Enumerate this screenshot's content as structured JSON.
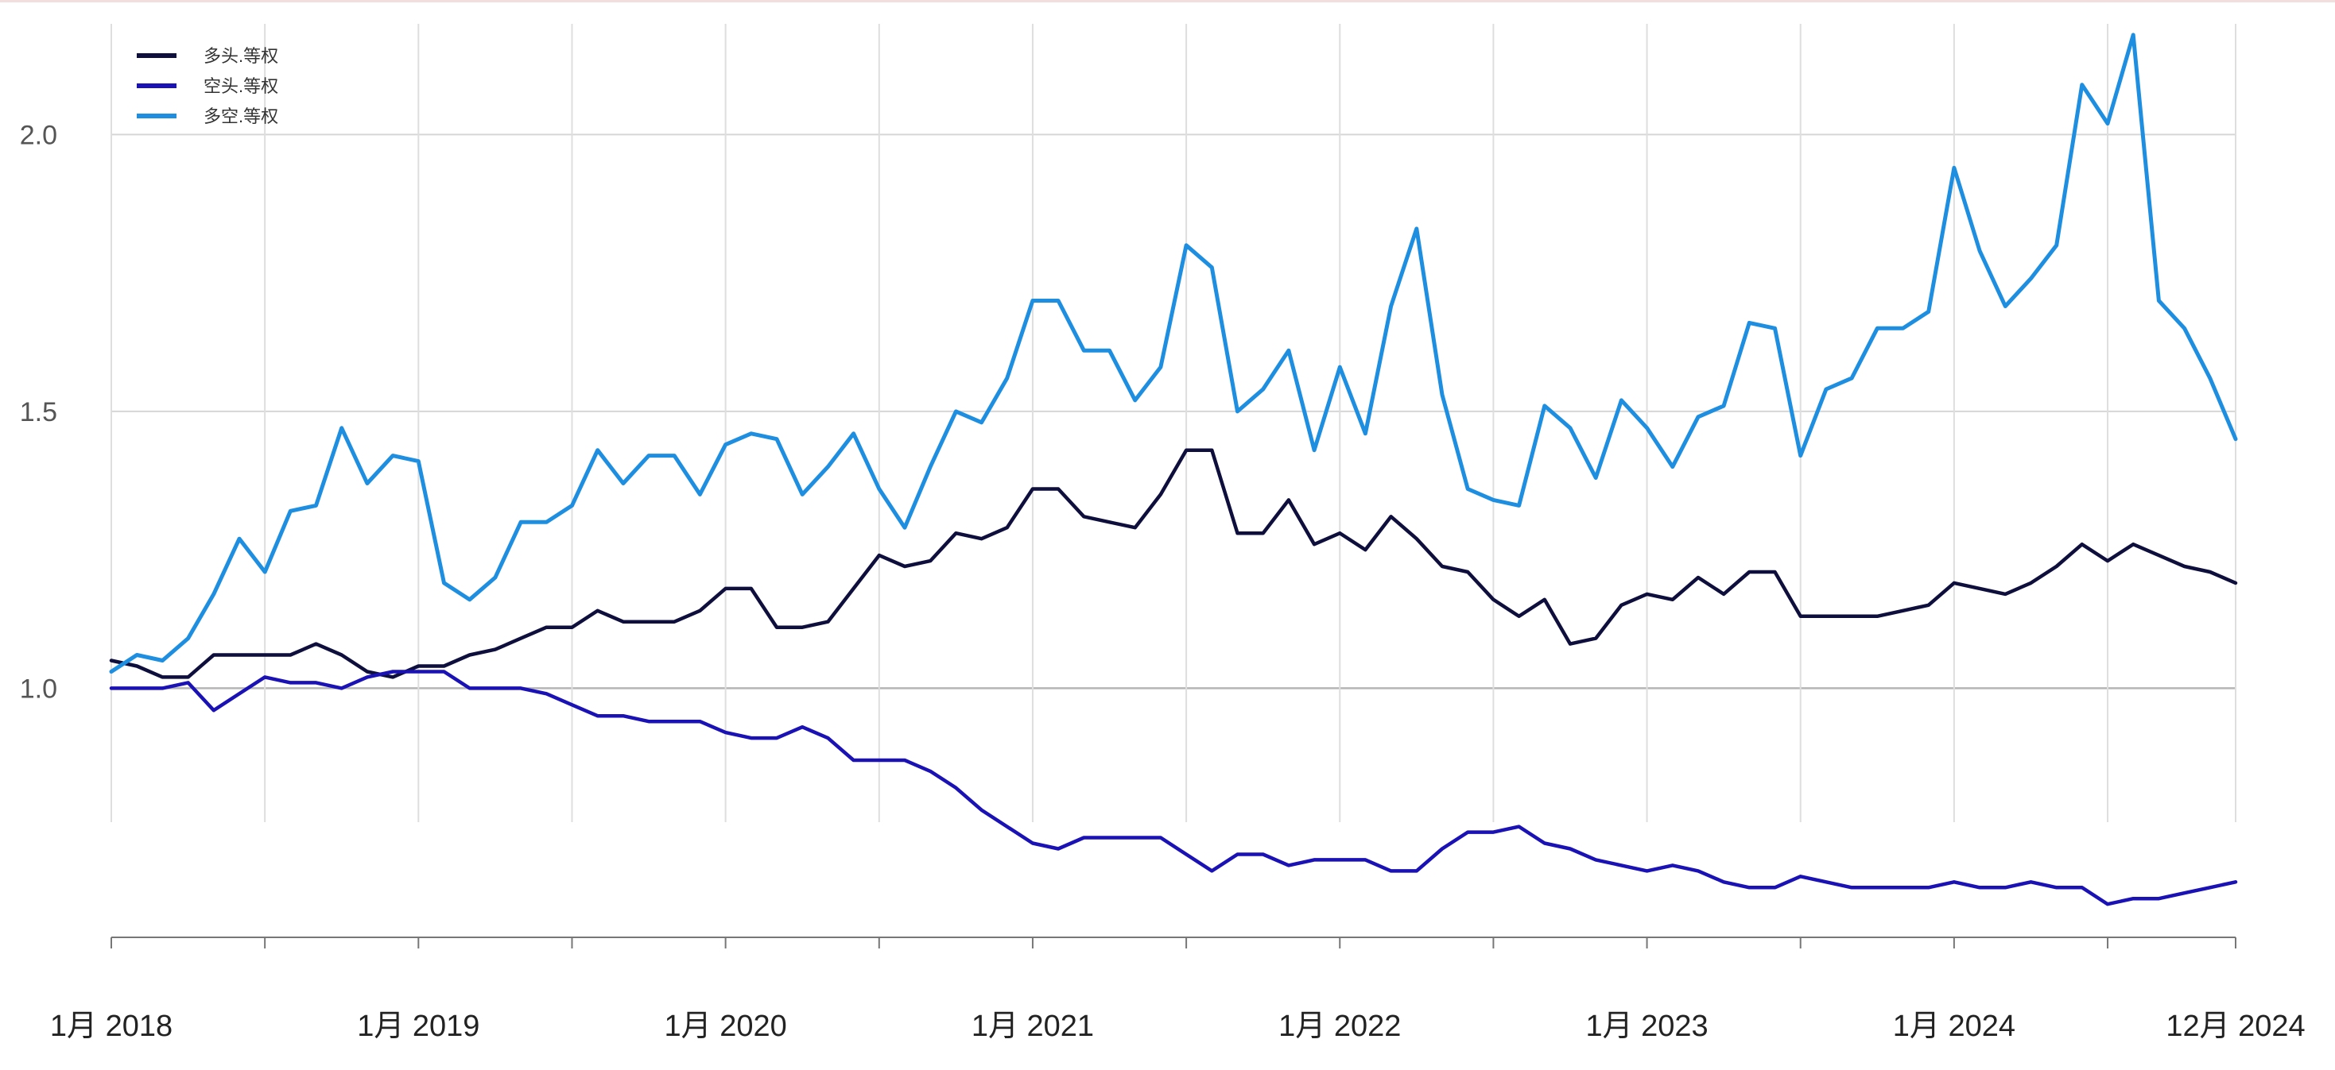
{
  "chart_data": {
    "type": "line",
    "title": "",
    "xlabel": "",
    "ylabel": "",
    "x_start": "2018-01",
    "x_end": "2024-12",
    "ylim": [
      0.55,
      2.2
    ],
    "y_ticks": [
      1.0,
      1.5,
      2.0
    ],
    "y_tick_labels": [
      "1.0",
      "1.5",
      "2.0"
    ],
    "x_tick_dates": [
      "2018-01",
      "2019-01",
      "2020-01",
      "2021-01",
      "2022-01",
      "2023-01",
      "2024-01",
      "2024-12"
    ],
    "x_tick_labels": [
      "1月 2018",
      "1月 2019",
      "1月 2020",
      "1月 2021",
      "1月 2022",
      "1月 2023",
      "1月 2024",
      "12月 2024"
    ],
    "grid": true,
    "legend": "top-left",
    "series": [
      {
        "name": "多头.等权",
        "color": "#0f0f3d",
        "values": [
          1.05,
          1.04,
          1.02,
          1.02,
          1.06,
          1.06,
          1.06,
          1.06,
          1.08,
          1.06,
          1.03,
          1.02,
          1.04,
          1.04,
          1.06,
          1.07,
          1.09,
          1.11,
          1.11,
          1.14,
          1.12,
          1.12,
          1.12,
          1.14,
          1.18,
          1.18,
          1.11,
          1.11,
          1.12,
          1.18,
          1.24,
          1.22,
          1.23,
          1.28,
          1.27,
          1.29,
          1.36,
          1.36,
          1.31,
          1.3,
          1.29,
          1.35,
          1.43,
          1.43,
          1.28,
          1.28,
          1.34,
          1.26,
          1.28,
          1.25,
          1.31,
          1.27,
          1.22,
          1.21,
          1.16,
          1.13,
          1.16,
          1.08,
          1.09,
          1.15,
          1.17,
          1.16,
          1.2,
          1.17,
          1.21,
          1.21,
          1.13,
          1.13,
          1.13,
          1.13,
          1.14,
          1.15,
          1.19,
          1.18,
          1.17,
          1.19,
          1.22,
          1.26,
          1.23,
          1.26,
          1.24,
          1.22,
          1.21,
          1.19
        ]
      },
      {
        "name": "空头.等权",
        "color": "#1a12b4",
        "values": [
          1.0,
          1.0,
          1.0,
          1.01,
          0.96,
          0.99,
          1.02,
          1.01,
          1.01,
          1.0,
          1.02,
          1.03,
          1.03,
          1.03,
          1.0,
          1.0,
          1.0,
          0.99,
          0.97,
          0.95,
          0.95,
          0.94,
          0.94,
          0.94,
          0.92,
          0.91,
          0.91,
          0.93,
          0.91,
          0.87,
          0.87,
          0.87,
          0.85,
          0.82,
          0.78,
          0.75,
          0.72,
          0.71,
          0.73,
          0.73,
          0.73,
          0.73,
          0.7,
          0.67,
          0.7,
          0.7,
          0.68,
          0.69,
          0.69,
          0.69,
          0.67,
          0.67,
          0.71,
          0.74,
          0.74,
          0.75,
          0.72,
          0.71,
          0.69,
          0.68,
          0.67,
          0.68,
          0.67,
          0.65,
          0.64,
          0.64,
          0.66,
          0.65,
          0.64,
          0.64,
          0.64,
          0.64,
          0.65,
          0.64,
          0.64,
          0.65,
          0.64,
          0.64,
          0.61,
          0.62,
          0.62,
          0.63,
          0.64,
          0.65
        ]
      },
      {
        "name": "多空.等权",
        "color": "#1e8fe0",
        "values": [
          1.03,
          1.06,
          1.05,
          1.09,
          1.17,
          1.27,
          1.21,
          1.32,
          1.33,
          1.47,
          1.37,
          1.42,
          1.41,
          1.19,
          1.16,
          1.2,
          1.3,
          1.3,
          1.33,
          1.43,
          1.37,
          1.42,
          1.42,
          1.35,
          1.44,
          1.46,
          1.45,
          1.35,
          1.4,
          1.46,
          1.36,
          1.29,
          1.4,
          1.5,
          1.48,
          1.56,
          1.7,
          1.7,
          1.61,
          1.61,
          1.52,
          1.58,
          1.8,
          1.76,
          1.5,
          1.54,
          1.61,
          1.43,
          1.58,
          1.46,
          1.69,
          1.83,
          1.53,
          1.36,
          1.34,
          1.33,
          1.51,
          1.47,
          1.38,
          1.52,
          1.47,
          1.4,
          1.49,
          1.51,
          1.66,
          1.65,
          1.42,
          1.54,
          1.56,
          1.65,
          1.65,
          1.68,
          1.94,
          1.79,
          1.69,
          1.74,
          1.8,
          2.09,
          2.02,
          2.18,
          1.7,
          1.65,
          1.56,
          1.45
        ]
      }
    ]
  }
}
